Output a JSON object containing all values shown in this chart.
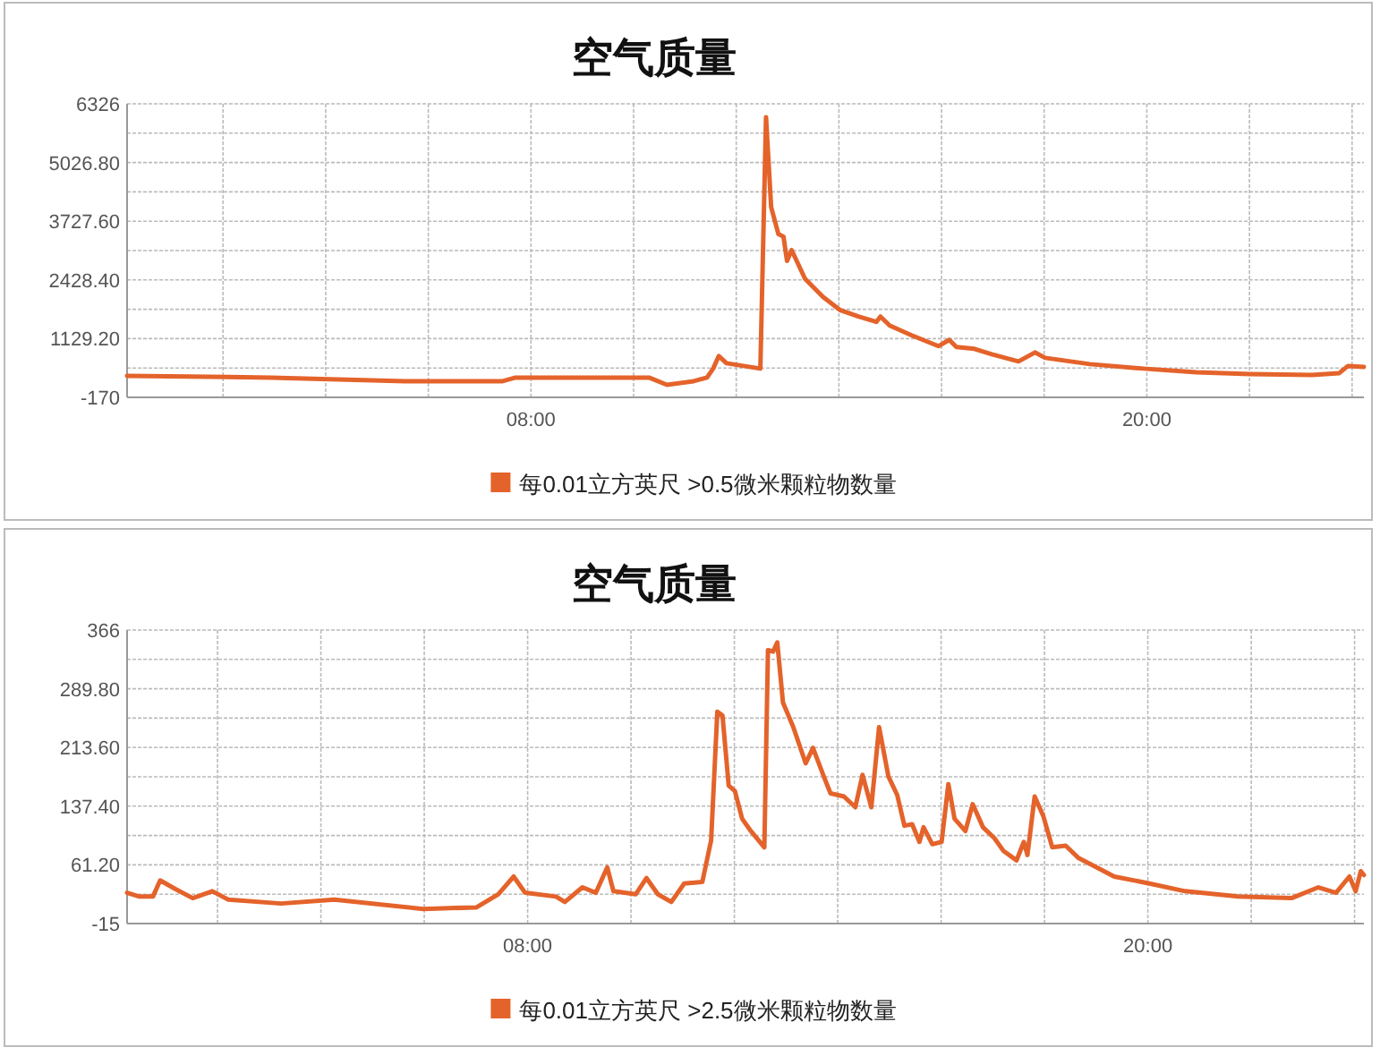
{
  "chart_data": [
    {
      "type": "line",
      "title": "空气质量",
      "legend": "bottom",
      "grid": true,
      "xlim": [
        0.13,
        24.23
      ],
      "ylim": [
        -170,
        6326
      ],
      "xticks": [
        {
          "value": 2,
          "label": null
        },
        {
          "value": 4,
          "label": null
        },
        {
          "value": 6,
          "label": null
        },
        {
          "value": 8,
          "label": "08:00"
        },
        {
          "value": 10,
          "label": null
        },
        {
          "value": 12,
          "label": null
        },
        {
          "value": 14,
          "label": null
        },
        {
          "value": 16,
          "label": null
        },
        {
          "value": 18,
          "label": null
        },
        {
          "value": 20,
          "label": "20:00"
        },
        {
          "value": 22,
          "label": null
        },
        {
          "value": 24,
          "label": null
        }
      ],
      "yticks": [
        -170,
        {
          "value": 479.6,
          "label": null
        },
        {
          "value": 1129.2,
          "label": "1129.20"
        },
        {
          "value": 1778.8,
          "label": null
        },
        {
          "value": 2428.4,
          "label": "2428.40"
        },
        {
          "value": 3078,
          "label": null
        },
        {
          "value": 3727.6,
          "label": "3727.60"
        },
        {
          "value": 4377.2,
          "label": null
        },
        {
          "value": 5026.8,
          "label": "5026.80"
        },
        {
          "value": 5676.4,
          "label": null
        },
        6326
      ],
      "series": [
        {
          "name": "每0.01立方英尺 >0.5微米颗粒物数量",
          "color": "#e4632b",
          "x": [
            0.13,
            2.94,
            5.54,
            7.45,
            7.7,
            9.87,
            10.3,
            10.65,
            11.17,
            11.43,
            11.55,
            11.66,
            11.81,
            12.47,
            12.58,
            12.68,
            12.82,
            12.92,
            12.99,
            13.08,
            13.34,
            13.69,
            14.03,
            14.38,
            14.73,
            14.81,
            14.99,
            15.42,
            15.94,
            16.15,
            16.29,
            16.64,
            16.98,
            17.5,
            17.82,
            18.02,
            18.89,
            19.93,
            20.97,
            22.01,
            23.22,
            23.75,
            23.92,
            24.23
          ],
          "values": [
            307,
            267,
            188,
            188,
            267,
            267,
            267,
            108,
            188,
            267,
            466,
            744,
            585,
            466,
            6029,
            4042,
            3446,
            3387,
            2850,
            3089,
            2453,
            2055,
            1757,
            1618,
            1499,
            1618,
            1420,
            1201,
            963,
            1102,
            943,
            903,
            784,
            625,
            824,
            704,
            565,
            466,
            386,
            347,
            327,
            366,
            525,
            505
          ]
        }
      ]
    },
    {
      "type": "line",
      "title": "空气质量",
      "legend": "bottom",
      "grid": true,
      "xlim": [
        0.25,
        24.18
      ],
      "ylim": [
        -15,
        366
      ],
      "xticks": [
        {
          "value": 2,
          "label": null
        },
        {
          "value": 4,
          "label": null
        },
        {
          "value": 6,
          "label": null
        },
        {
          "value": 8,
          "label": "08:00"
        },
        {
          "value": 10,
          "label": null
        },
        {
          "value": 12,
          "label": null
        },
        {
          "value": 14,
          "label": null
        },
        {
          "value": 16,
          "label": null
        },
        {
          "value": 18,
          "label": null
        },
        {
          "value": 20,
          "label": "20:00"
        },
        {
          "value": 22,
          "label": null
        },
        {
          "value": 24,
          "label": null
        }
      ],
      "yticks": [
        -15,
        {
          "value": 23.1,
          "label": null
        },
        {
          "value": 61.2,
          "label": "61.20"
        },
        {
          "value": 99.3,
          "label": null
        },
        {
          "value": 137.4,
          "label": "137.40"
        },
        {
          "value": 175.5,
          "label": null
        },
        {
          "value": 213.6,
          "label": "213.60"
        },
        {
          "value": 251.7,
          "label": null
        },
        {
          "value": 289.8,
          "label": "289.80"
        },
        {
          "value": 327.9,
          "label": null
        },
        366
      ],
      "series": [
        {
          "name": "每0.01立方英尺 >2.5微米颗粒物数量",
          "color": "#e4632b",
          "x": [
            0.25,
            0.49,
            0.75,
            0.89,
            1.18,
            1.52,
            1.9,
            2.21,
            3.23,
            4.26,
            5.98,
            7.01,
            7.43,
            7.73,
            7.95,
            8.55,
            8.72,
            9.06,
            9.32,
            9.54,
            9.66,
            10.09,
            10.3,
            10.52,
            10.78,
            11.03,
            11.38,
            11.55,
            11.67,
            11.77,
            11.89,
            12.01,
            12.15,
            12.32,
            12.58,
            12.65,
            12.75,
            12.83,
            12.94,
            13.14,
            13.38,
            13.52,
            13.73,
            13.86,
            14.12,
            14.34,
            14.48,
            14.65,
            14.8,
            14.98,
            15.15,
            15.29,
            15.44,
            15.58,
            15.66,
            15.83,
            16.01,
            16.14,
            16.26,
            16.47,
            16.61,
            16.81,
            17.03,
            17.21,
            17.46,
            17.6,
            17.67,
            17.81,
            17.98,
            18.15,
            18.41,
            18.66,
            19.01,
            19.35,
            20.03,
            20.72,
            21.75,
            22.78,
            23.3,
            23.64,
            23.9,
            24.02,
            24.12,
            24.18
          ],
          "values": [
            25,
            20,
            20,
            41,
            30,
            18,
            27,
            16,
            11,
            16,
            4,
            6,
            23,
            46,
            25,
            20,
            13,
            32,
            25,
            58,
            27,
            23,
            44,
            23,
            13,
            37,
            39,
            93,
            260,
            255,
            164,
            157,
            121,
            105,
            84,
            340,
            338,
            350,
            272,
            240,
            193,
            213,
            176,
            154,
            150,
            136,
            178,
            136,
            240,
            176,
            152,
            112,
            114,
            91,
            110,
            88,
            91,
            166,
            121,
            105,
            140,
            110,
            96,
            79,
            67,
            91,
            74,
            150,
            124,
            84,
            86,
            70,
            58,
            46,
            37,
            27,
            20,
            18,
            32,
            25,
            46,
            27,
            53,
            48
          ]
        }
      ]
    }
  ]
}
